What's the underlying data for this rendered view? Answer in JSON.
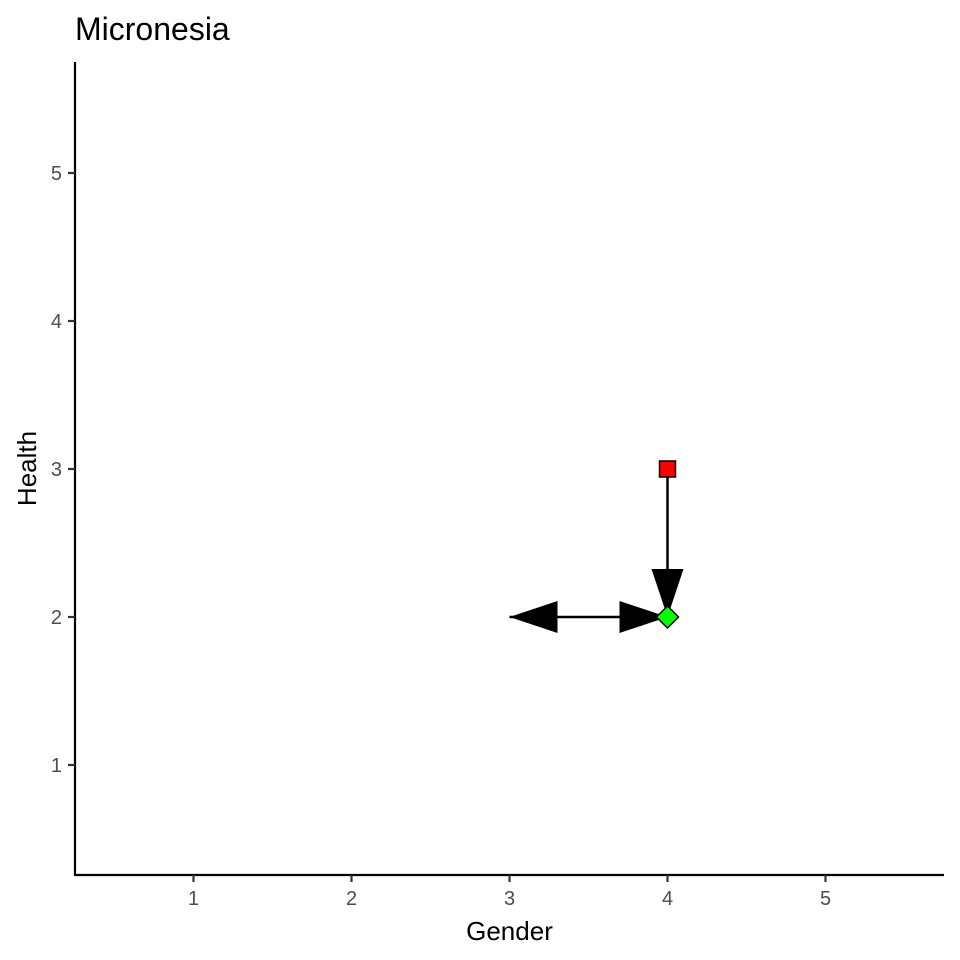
{
  "chart_data": {
    "type": "scatter",
    "title": "Micronesia",
    "xlabel": "Gender",
    "ylabel": "Health",
    "xlim": [
      0.25,
      5.75
    ],
    "ylim": [
      0.25,
      5.75
    ],
    "xticks": [
      1,
      2,
      3,
      4,
      5
    ],
    "yticks": [
      1,
      2,
      3,
      4,
      5
    ],
    "grid": false,
    "legend": "none",
    "points": [
      {
        "x": 4,
        "y": 3,
        "shape": "square",
        "color": "#ff0000"
      },
      {
        "x": 4,
        "y": 2,
        "shape": "diamond",
        "color": "#00ff00"
      }
    ],
    "arrows": [
      {
        "x1": 4,
        "y1": 3,
        "x2": 4,
        "y2": 2,
        "ends": "last"
      },
      {
        "x1": 3,
        "y1": 2,
        "x2": 4,
        "y2": 2,
        "ends": "both"
      }
    ]
  }
}
